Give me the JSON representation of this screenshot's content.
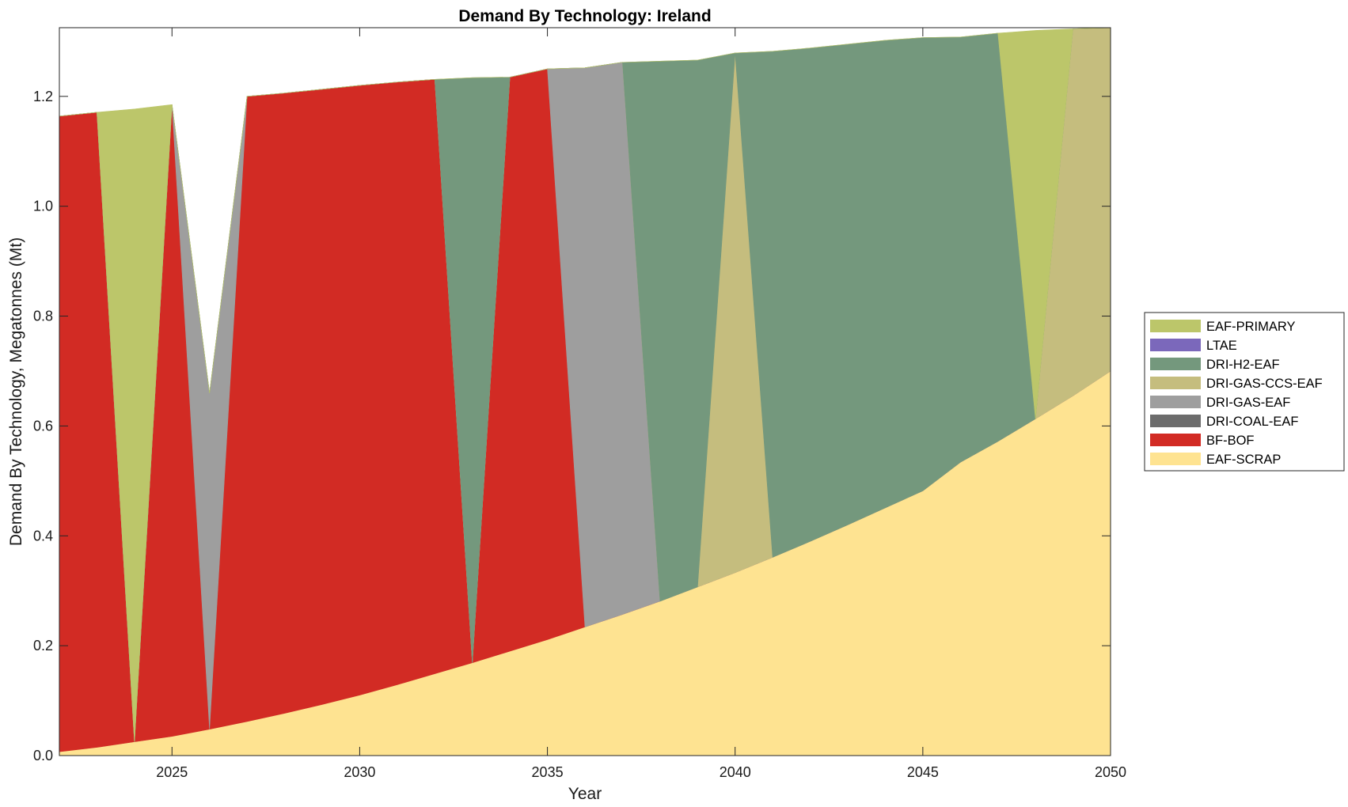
{
  "chart_data": {
    "type": "area",
    "title": "Demand By Technology: Ireland",
    "xlabel": "Year",
    "ylabel": "Demand By Technology, Megatonnes (Mt)",
    "xlim": [
      2022,
      2050
    ],
    "ylim": [
      0,
      1.325
    ],
    "xticks": [
      2025,
      2030,
      2035,
      2040,
      2045,
      2050
    ],
    "yticks": [
      0.0,
      0.2,
      0.4,
      0.6,
      0.8,
      1.0,
      1.2
    ],
    "ytick_labels": [
      "0.0",
      "0.2",
      "0.4",
      "0.6",
      "0.8",
      "1.0",
      "1.2"
    ],
    "grid": false,
    "legend_position": "right",
    "x": [
      2022,
      2023,
      2024,
      2025,
      2026,
      2027,
      2028,
      2029,
      2030,
      2031,
      2032,
      2033,
      2034,
      2035,
      2036,
      2037,
      2038,
      2039,
      2040,
      2041,
      2042,
      2043,
      2044,
      2045,
      2046,
      2047,
      2048,
      2049,
      2050
    ],
    "series": [
      {
        "name": "EAF-SCRAP",
        "color": "#fee391",
        "values": [
          0.007,
          0.015,
          0.025,
          0.035,
          0.048,
          0.062,
          0.077,
          0.093,
          0.11,
          0.129,
          0.149,
          0.169,
          0.19,
          0.211,
          0.234,
          0.257,
          0.281,
          0.307,
          0.333,
          0.361,
          0.39,
          0.42,
          0.451,
          0.482,
          0.534,
          0.572,
          0.613,
          0.655,
          0.7
        ]
      },
      {
        "name": "BF-BOF",
        "color": "#d22b24",
        "values": [
          1.157,
          1.156,
          0,
          1.15,
          0,
          1.138,
          1.129,
          1.12,
          1.11,
          1.097,
          1.082,
          0,
          1.045,
          1.039,
          0,
          0,
          0,
          0,
          0,
          0,
          0,
          0,
          0,
          0,
          0,
          0,
          0,
          0,
          0
        ]
      },
      {
        "name": "DRI-COAL-EAF",
        "color": "#6c6c6c",
        "values": [
          0,
          0,
          0,
          0,
          0,
          0,
          0,
          0,
          0,
          0,
          0,
          0,
          0,
          0,
          0,
          0,
          0,
          0,
          0,
          0,
          0,
          0,
          0,
          0,
          0,
          0,
          0,
          0,
          0
        ]
      },
      {
        "name": "DRI-GAS-EAF",
        "color": "#9e9e9e",
        "values": [
          0,
          0,
          0,
          0,
          0.612,
          0,
          0,
          0,
          0,
          0,
          0,
          0,
          0,
          0,
          1.018,
          1.005,
          0,
          0,
          0,
          0,
          0,
          0,
          0,
          0,
          0,
          0,
          0,
          0,
          0
        ]
      },
      {
        "name": "DRI-GAS-CCS-EAF",
        "color": "#c5bd7e",
        "values": [
          0,
          0,
          0,
          0,
          0,
          0,
          0,
          0,
          0,
          0,
          0,
          0,
          0,
          0,
          0,
          0,
          0,
          0,
          0.946,
          0,
          0,
          0,
          0,
          0,
          0,
          0,
          0,
          0.668,
          0.625
        ]
      },
      {
        "name": "DRI-H2-EAF",
        "color": "#74987d",
        "values": [
          0,
          0,
          0,
          0,
          0,
          0,
          0,
          0,
          0,
          0,
          0,
          1.065,
          0,
          0,
          0,
          0,
          0.983,
          0.959,
          0,
          0.921,
          0.898,
          0.875,
          0.851,
          0.825,
          0.774,
          0.743,
          0,
          0,
          0
        ]
      },
      {
        "name": "LTAE",
        "color": "#7b68bb",
        "values": [
          0,
          0,
          0,
          0,
          0,
          0,
          0,
          0,
          0,
          0,
          0,
          0,
          0,
          0,
          0,
          0,
          0,
          0,
          0,
          0,
          0,
          0,
          0,
          0,
          0,
          0,
          0,
          0,
          0
        ]
      },
      {
        "name": "EAF-PRIMARY",
        "color": "#bcc66a",
        "values": [
          0,
          0,
          1.152,
          0,
          0,
          0,
          0,
          0,
          0,
          0,
          0,
          0,
          0,
          0,
          0,
          0,
          0,
          0,
          0,
          0,
          0,
          0,
          0,
          0,
          0,
          0,
          0.707,
          0,
          0
        ]
      }
    ],
    "legend_order": [
      "EAF-PRIMARY",
      "LTAE",
      "DRI-H2-EAF",
      "DRI-GAS-CCS-EAF",
      "DRI-GAS-EAF",
      "DRI-COAL-EAF",
      "BF-BOF",
      "EAF-SCRAP"
    ]
  }
}
